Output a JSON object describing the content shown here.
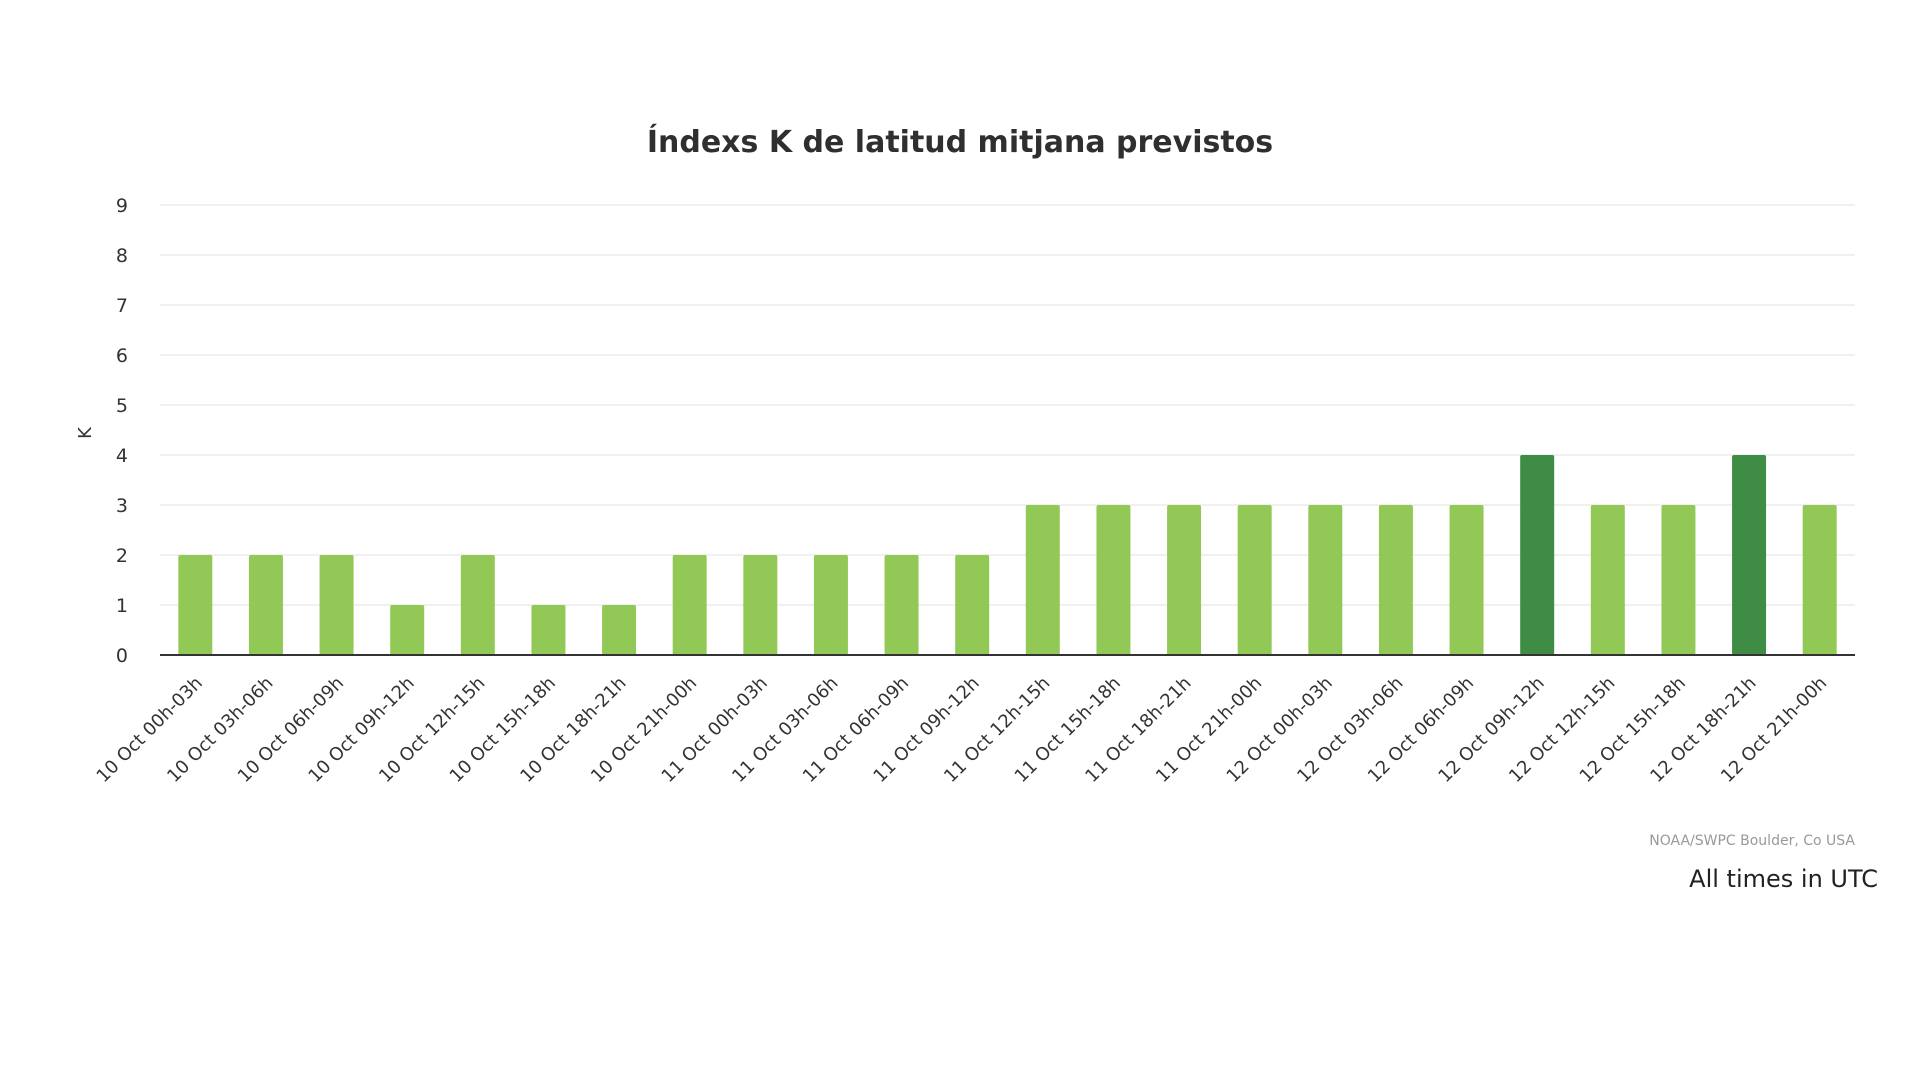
{
  "chart_data": {
    "type": "bar",
    "title": "Índexs K de latitud mitjana previstos",
    "xlabel": "",
    "ylabel": "K",
    "ylim": [
      0,
      9
    ],
    "yticks": [
      0,
      1,
      2,
      3,
      4,
      5,
      6,
      7,
      8,
      9
    ],
    "grid": true,
    "categories": [
      "10 Oct 00h-03h",
      "10 Oct 03h-06h",
      "10 Oct 06h-09h",
      "10 Oct 09h-12h",
      "10 Oct 12h-15h",
      "10 Oct 15h-18h",
      "10 Oct 18h-21h",
      "10 Oct 21h-00h",
      "11 Oct 00h-03h",
      "11 Oct 03h-06h",
      "11 Oct 06h-09h",
      "11 Oct 09h-12h",
      "11 Oct 12h-15h",
      "11 Oct 15h-18h",
      "11 Oct 18h-21h",
      "11 Oct 21h-00h",
      "12 Oct 00h-03h",
      "12 Oct 03h-06h",
      "12 Oct 06h-09h",
      "12 Oct 09h-12h",
      "12 Oct 12h-15h",
      "12 Oct 15h-18h",
      "12 Oct 18h-21h",
      "12 Oct 21h-00h"
    ],
    "values": [
      2,
      2,
      2,
      1,
      2,
      1,
      1,
      2,
      2,
      2,
      2,
      2,
      3,
      3,
      3,
      3,
      3,
      3,
      3,
      4,
      3,
      3,
      4,
      3
    ],
    "colors": {
      "normal": "#92c956",
      "elevated": "#3f8c44",
      "elevated_threshold": 4
    },
    "credit": "NOAA/SWPC Boulder, Co USA",
    "note": "All times in UTC"
  }
}
